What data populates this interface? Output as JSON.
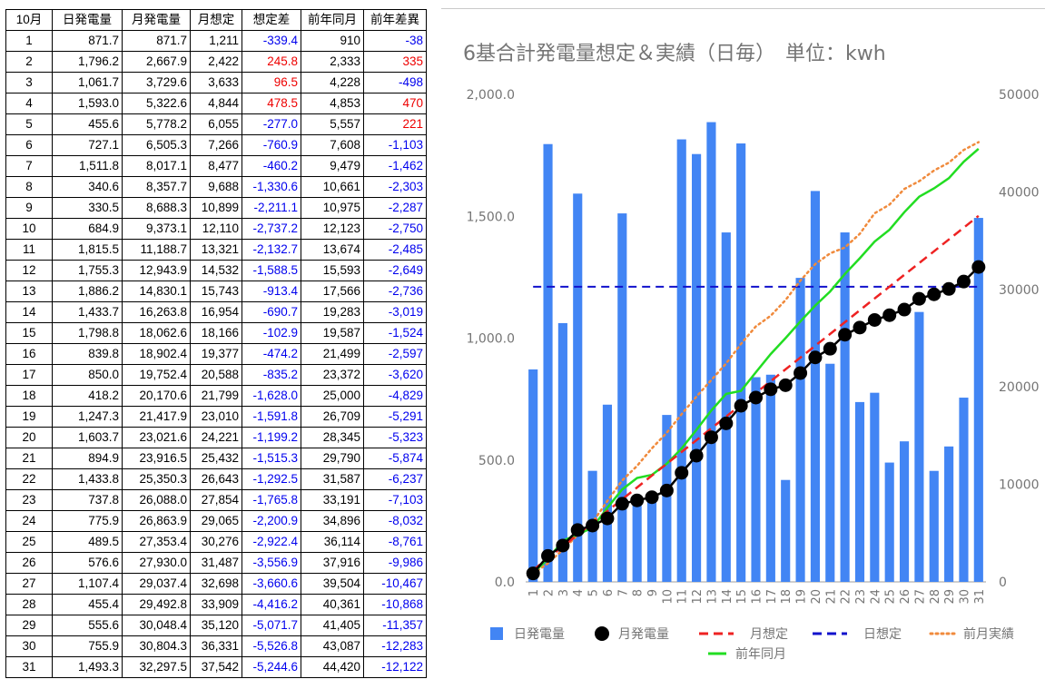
{
  "table": {
    "headers": [
      "10月",
      "日発電量",
      "月発電量",
      "月想定",
      "想定差",
      "前年同月",
      "前年差異"
    ],
    "rows": [
      [
        "1",
        "871.7",
        "871.7",
        "1,211",
        "-339.4",
        "910",
        "-38"
      ],
      [
        "2",
        "1,796.2",
        "2,667.9",
        "2,422",
        "245.8",
        "2,333",
        "335"
      ],
      [
        "3",
        "1,061.7",
        "3,729.6",
        "3,633",
        "96.5",
        "4,228",
        "-498"
      ],
      [
        "4",
        "1,593.0",
        "5,322.6",
        "4,844",
        "478.5",
        "4,853",
        "470"
      ],
      [
        "5",
        "455.6",
        "5,778.2",
        "6,055",
        "-277.0",
        "5,557",
        "221"
      ],
      [
        "6",
        "727.1",
        "6,505.3",
        "7,266",
        "-760.9",
        "7,608",
        "-1,103"
      ],
      [
        "7",
        "1,511.8",
        "8,017.1",
        "8,477",
        "-460.2",
        "9,479",
        "-1,462"
      ],
      [
        "8",
        "340.6",
        "8,357.7",
        "9,688",
        "-1,330.6",
        "10,661",
        "-2,303"
      ],
      [
        "9",
        "330.5",
        "8,688.3",
        "10,899",
        "-2,211.1",
        "10,975",
        "-2,287"
      ],
      [
        "10",
        "684.9",
        "9,373.1",
        "12,110",
        "-2,737.2",
        "12,123",
        "-2,750"
      ],
      [
        "11",
        "1,815.5",
        "11,188.7",
        "13,321",
        "-2,132.7",
        "13,674",
        "-2,485"
      ],
      [
        "12",
        "1,755.3",
        "12,943.9",
        "14,532",
        "-1,588.5",
        "15,593",
        "-2,649"
      ],
      [
        "13",
        "1,886.2",
        "14,830.1",
        "15,743",
        "-913.4",
        "17,566",
        "-2,736"
      ],
      [
        "14",
        "1,433.7",
        "16,263.8",
        "16,954",
        "-690.7",
        "19,283",
        "-3,019"
      ],
      [
        "15",
        "1,798.8",
        "18,062.6",
        "18,166",
        "-102.9",
        "19,587",
        "-1,524"
      ],
      [
        "16",
        "839.8",
        "18,902.4",
        "19,377",
        "-474.2",
        "21,499",
        "-2,597"
      ],
      [
        "17",
        "850.0",
        "19,752.4",
        "20,588",
        "-835.2",
        "23,372",
        "-3,620"
      ],
      [
        "18",
        "418.2",
        "20,170.6",
        "21,799",
        "-1,628.0",
        "25,000",
        "-4,829"
      ],
      [
        "19",
        "1,247.3",
        "21,417.9",
        "23,010",
        "-1,591.8",
        "26,709",
        "-5,291"
      ],
      [
        "20",
        "1,603.7",
        "23,021.6",
        "24,221",
        "-1,199.2",
        "28,345",
        "-5,323"
      ],
      [
        "21",
        "894.9",
        "23,916.5",
        "25,432",
        "-1,515.3",
        "29,790",
        "-5,874"
      ],
      [
        "22",
        "1,433.8",
        "25,350.3",
        "26,643",
        "-1,292.5",
        "31,587",
        "-6,237"
      ],
      [
        "23",
        "737.8",
        "26,088.0",
        "27,854",
        "-1,765.8",
        "33,191",
        "-7,103"
      ],
      [
        "24",
        "775.9",
        "26,863.9",
        "29,065",
        "-2,200.9",
        "34,896",
        "-8,032"
      ],
      [
        "25",
        "489.5",
        "27,353.4",
        "30,276",
        "-2,922.4",
        "36,114",
        "-8,761"
      ],
      [
        "26",
        "576.6",
        "27,930.0",
        "31,487",
        "-3,556.9",
        "37,916",
        "-9,986"
      ],
      [
        "27",
        "1,107.4",
        "29,037.4",
        "32,698",
        "-3,660.6",
        "39,504",
        "-10,467"
      ],
      [
        "28",
        "455.4",
        "29,492.8",
        "33,909",
        "-4,416.2",
        "40,361",
        "-10,868"
      ],
      [
        "29",
        "555.6",
        "30,048.4",
        "35,120",
        "-5,071.7",
        "41,405",
        "-11,357"
      ],
      [
        "30",
        "755.9",
        "30,804.3",
        "36,331",
        "-5,526.8",
        "43,087",
        "-12,283"
      ],
      [
        "31",
        "1,493.3",
        "32,297.5",
        "37,542",
        "-5,244.6",
        "44,420",
        "-12,122"
      ]
    ]
  },
  "colors": {
    "bar": "#4285f4",
    "monthly": "#000000",
    "monthly_target": "#ee2222",
    "daily_target": "#1111cc",
    "prev_month": "#f08a3c",
    "prev_year": "#22dd22",
    "positive_text": "#ee0000",
    "negative_text": "#0000ee"
  },
  "chart_data": {
    "type": "bar",
    "title": "6基合計発電量想定＆実績（日毎）　単位：kwh",
    "categories": [
      "1",
      "2",
      "3",
      "4",
      "5",
      "6",
      "7",
      "8",
      "9",
      "10",
      "11",
      "12",
      "13",
      "14",
      "15",
      "16",
      "17",
      "18",
      "19",
      "20",
      "21",
      "22",
      "23",
      "24",
      "25",
      "26",
      "27",
      "28",
      "29",
      "30",
      "31"
    ],
    "y_left": {
      "ticks": [
        "0.0",
        "500.0",
        "1,000.0",
        "1,500.0",
        "2,000.0"
      ],
      "range": [
        0,
        2000
      ]
    },
    "y_right": {
      "ticks": [
        "0",
        "10000",
        "20000",
        "30000",
        "40000",
        "50000"
      ],
      "range": [
        0,
        50000
      ]
    },
    "daily_target_value": 1211,
    "legend_position": "bottom",
    "series": [
      {
        "name": "日発電量",
        "type": "bar",
        "axis": "left",
        "values": [
          871.7,
          1796.2,
          1061.7,
          1593.0,
          455.6,
          727.1,
          1511.8,
          340.6,
          330.5,
          684.9,
          1815.5,
          1755.3,
          1886.2,
          1433.7,
          1798.8,
          839.8,
          850.0,
          418.2,
          1247.3,
          1603.7,
          894.9,
          1433.8,
          737.8,
          775.9,
          489.5,
          576.6,
          1107.4,
          455.4,
          555.6,
          755.9,
          1493.3
        ]
      },
      {
        "name": "月発電量",
        "type": "line-dots",
        "axis": "right",
        "values": [
          871.7,
          2667.9,
          3729.6,
          5322.6,
          5778.2,
          6505.3,
          8017.1,
          8357.7,
          8688.3,
          9373.1,
          11188.7,
          12943.9,
          14830.1,
          16263.8,
          18062.6,
          18902.4,
          19752.4,
          20170.6,
          21417.9,
          23021.6,
          23916.5,
          25350.3,
          26088.0,
          26863.9,
          27353.4,
          27930.0,
          29037.4,
          29492.8,
          30048.4,
          30804.3,
          32297.5
        ]
      },
      {
        "name": "月想定",
        "type": "dashed-line",
        "axis": "right",
        "values": [
          1211,
          2422,
          3633,
          4844,
          6055,
          7266,
          8477,
          9688,
          10899,
          12110,
          13321,
          14532,
          15743,
          16954,
          18166,
          19377,
          20588,
          21799,
          23010,
          24221,
          25432,
          26643,
          27854,
          29065,
          30276,
          31487,
          32698,
          33909,
          35120,
          36331,
          37542
        ]
      },
      {
        "name": "日想定",
        "type": "dashed-line",
        "axis": "left",
        "values": [
          1211,
          1211,
          1211,
          1211,
          1211,
          1211,
          1211,
          1211,
          1211,
          1211,
          1211,
          1211,
          1211,
          1211,
          1211,
          1211,
          1211,
          1211,
          1211,
          1211,
          1211,
          1211,
          1211,
          1211,
          1211,
          1211,
          1211,
          1211,
          1211,
          1211,
          1211
        ]
      },
      {
        "name": "前月実績",
        "type": "dotted-line",
        "axis": "right",
        "values": [
          850,
          1900,
          3300,
          4800,
          6100,
          8300,
          10400,
          11900,
          13700,
          15300,
          17200,
          19000,
          20700,
          22400,
          24400,
          26200,
          27300,
          28900,
          30900,
          32600,
          33700,
          34300,
          35700,
          37800,
          38700,
          40300,
          41100,
          42200,
          43000,
          44300,
          45100
        ]
      },
      {
        "name": "前年同月",
        "type": "line",
        "axis": "right",
        "values": [
          910,
          2333,
          4228,
          4853,
          5557,
          7608,
          9479,
          10661,
          10975,
          12123,
          13674,
          15593,
          17566,
          19283,
          19587,
          21499,
          23372,
          25000,
          26709,
          28345,
          29790,
          31587,
          33191,
          34896,
          36114,
          37916,
          39504,
          40361,
          41405,
          43087,
          44420
        ]
      }
    ]
  }
}
